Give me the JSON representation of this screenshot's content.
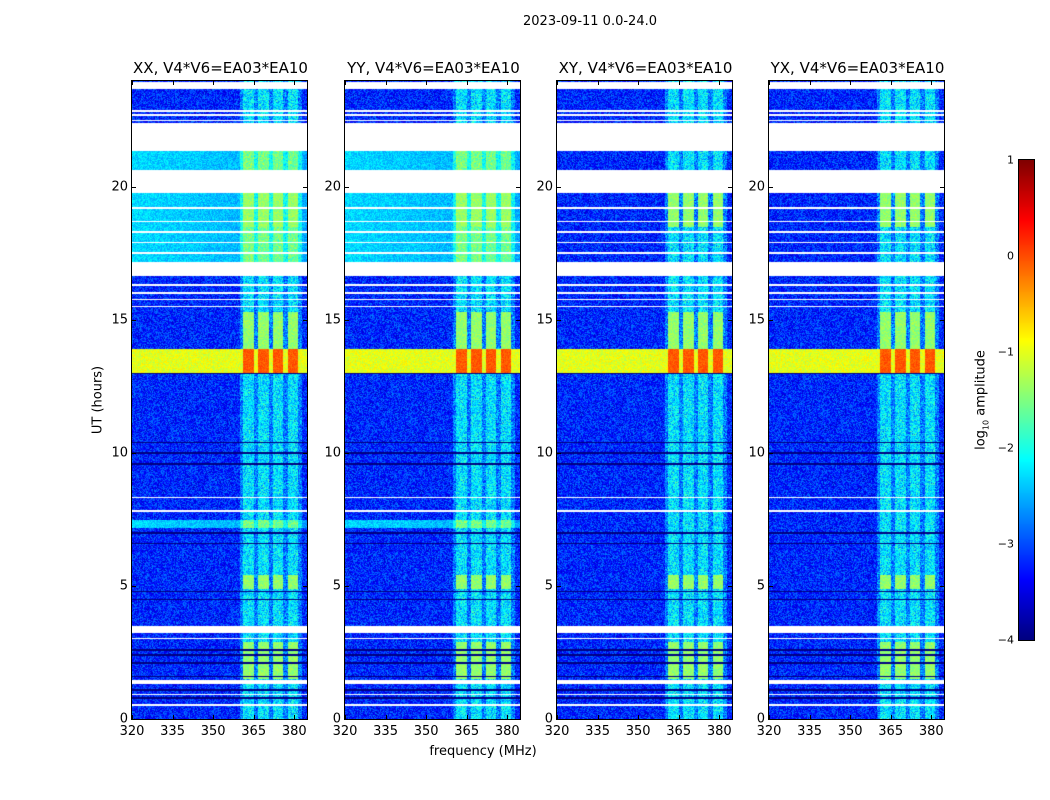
{
  "chart_data": {
    "type": "heatmap",
    "title": "2023-09-11 0.0-24.0",
    "xlabel": "frequency (MHz)",
    "ylabel": "UT (hours)",
    "xlim": [
      320,
      384.7
    ],
    "ylim": [
      0,
      24
    ],
    "xticks": [
      "320",
      "335",
      "350",
      "365",
      "380"
    ],
    "yticks": [
      "0",
      "5",
      "10",
      "15",
      "20"
    ],
    "colormap": "jet",
    "colorbar": {
      "label": "log10 amplitude",
      "label_main": "log",
      "label_sub": "10",
      "label_rest": " amplitude",
      "range": [
        -4,
        1
      ],
      "ticks": [
        "1",
        "0",
        "−1",
        "−2",
        "−3",
        "−4"
      ]
    },
    "panels": [
      {
        "title": "XX, V4*V6=EA03*EA10",
        "parallel": true
      },
      {
        "title": "YY, V4*V6=EA03*EA10",
        "parallel": true
      },
      {
        "title": "XY, V4*V6=EA03*EA10",
        "parallel": false
      },
      {
        "title": "YX, V4*V6=EA03*EA10",
        "parallel": false
      }
    ],
    "background_level": -3.2,
    "flagged_hours": [
      [
        23.7,
        23.98
      ],
      [
        22.85,
        22.9
      ],
      [
        22.7,
        22.75
      ],
      [
        22.5,
        22.55
      ],
      [
        22.2,
        22.42
      ],
      [
        21.35,
        22.2
      ],
      [
        20.5,
        20.65
      ],
      [
        19.8,
        20.5
      ],
      [
        19.2,
        19.25
      ],
      [
        18.7,
        18.75
      ],
      [
        18.3,
        18.35
      ],
      [
        17.9,
        17.95
      ],
      [
        17.5,
        17.55
      ],
      [
        16.65,
        17.2
      ],
      [
        16.3,
        16.35
      ],
      [
        16.0,
        16.05
      ],
      [
        15.75,
        15.8
      ],
      [
        15.5,
        15.55
      ],
      [
        8.3,
        8.35
      ],
      [
        7.8,
        7.85
      ],
      [
        3.25,
        3.5
      ],
      [
        3.0,
        3.05
      ],
      [
        1.3,
        1.45
      ],
      [
        0.9,
        0.95
      ],
      [
        0.5,
        0.55
      ]
    ],
    "dark_lines_hours": [
      13.0,
      10.4,
      10.0,
      9.6,
      7.0,
      6.6,
      4.8,
      4.5,
      2.6,
      2.4,
      2.1,
      1.6,
      1.1,
      0.8
    ],
    "rfi_channels_mhz": [
      [
        361,
        365
      ],
      [
        366.5,
        370.5
      ],
      [
        372,
        376
      ],
      [
        377.5,
        381.5
      ]
    ],
    "bright_band_hours": [
      13.0,
      13.9
    ],
    "bright_band_level": -1.0,
    "rfi_peak_level": -0.2,
    "parallel_hand_raised_hours": [
      [
        17.2,
        21.35
      ],
      [
        7.2,
        7.5
      ]
    ],
    "parallel_hand_raised_level": -2.3
  }
}
